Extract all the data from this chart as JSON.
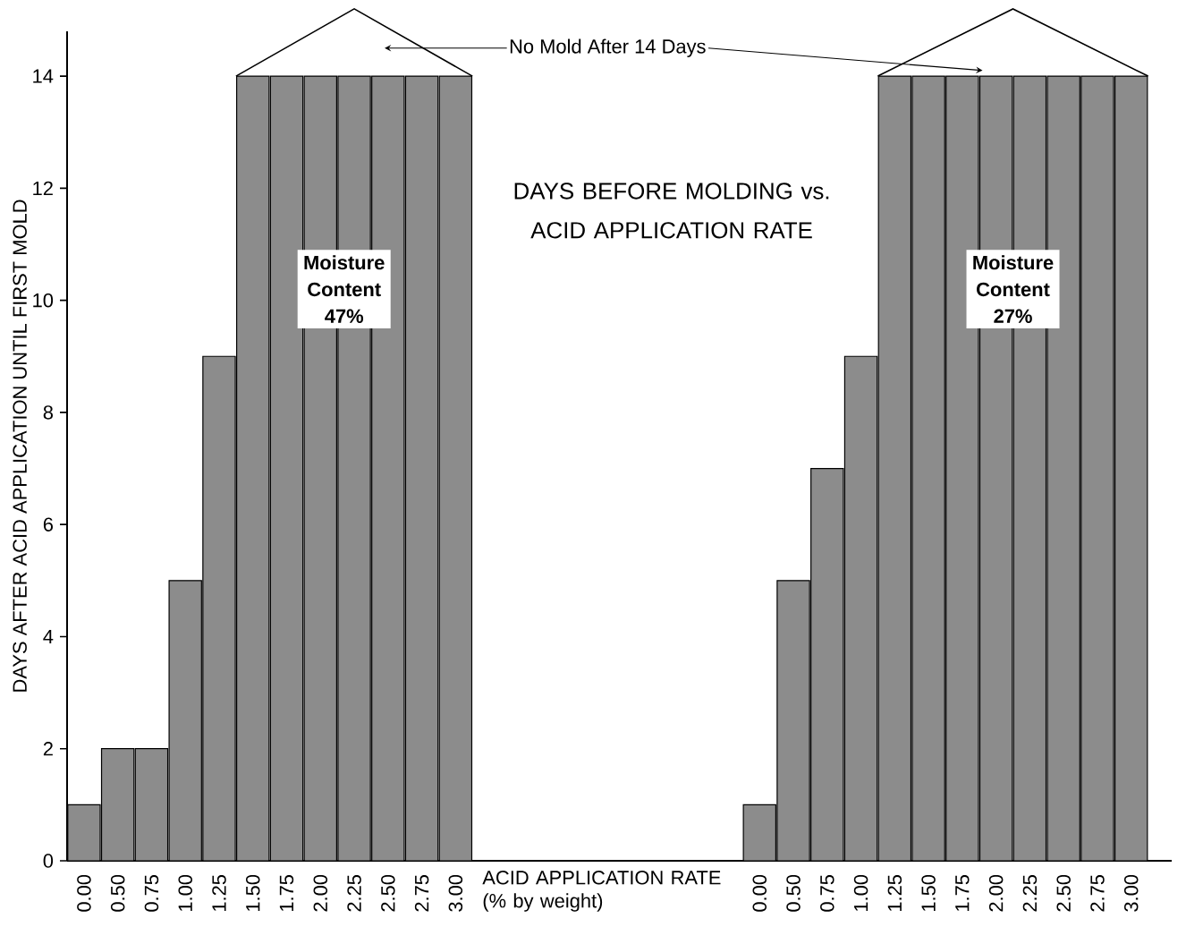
{
  "chart_data": {
    "type": "bar",
    "title": "DAYS BEFORE MOLDING vs. ACID APPLICATION RATE",
    "xlabel": "ACID APPLICATION RATE (% by weight)",
    "ylabel": "DAYS AFTER ACID APPLICATION UNTIL FIRST MOLD",
    "categories": [
      "0.00",
      "0.50",
      "0.75",
      "1.00",
      "1.25",
      "1.50",
      "1.75",
      "2.00",
      "2.25",
      "2.50",
      "2.75",
      "3.00",
      null,
      null,
      null,
      null,
      null,
      null,
      null,
      null,
      "0.00",
      "0.50",
      "0.75",
      "1.00",
      "1.25",
      "1.50",
      "1.75",
      "2.00",
      "2.25",
      "2.50",
      "2.75",
      "3.00"
    ],
    "values": [
      1,
      2,
      2,
      5,
      9,
      14,
      14,
      14,
      14,
      14,
      14,
      14,
      null,
      null,
      null,
      null,
      null,
      null,
      null,
      null,
      1,
      5,
      7,
      9,
      14,
      14,
      14,
      14,
      14,
      14,
      14,
      14
    ],
    "color": "#8c8c8c",
    "ylim": [
      0,
      14.8
    ],
    "yticks": [
      0,
      2,
      4,
      6,
      8,
      10,
      12,
      14
    ],
    "annotations": [
      "No Mold After 14 Days",
      "Moisture Content 47%",
      "Moisture Content 27%"
    ]
  }
}
